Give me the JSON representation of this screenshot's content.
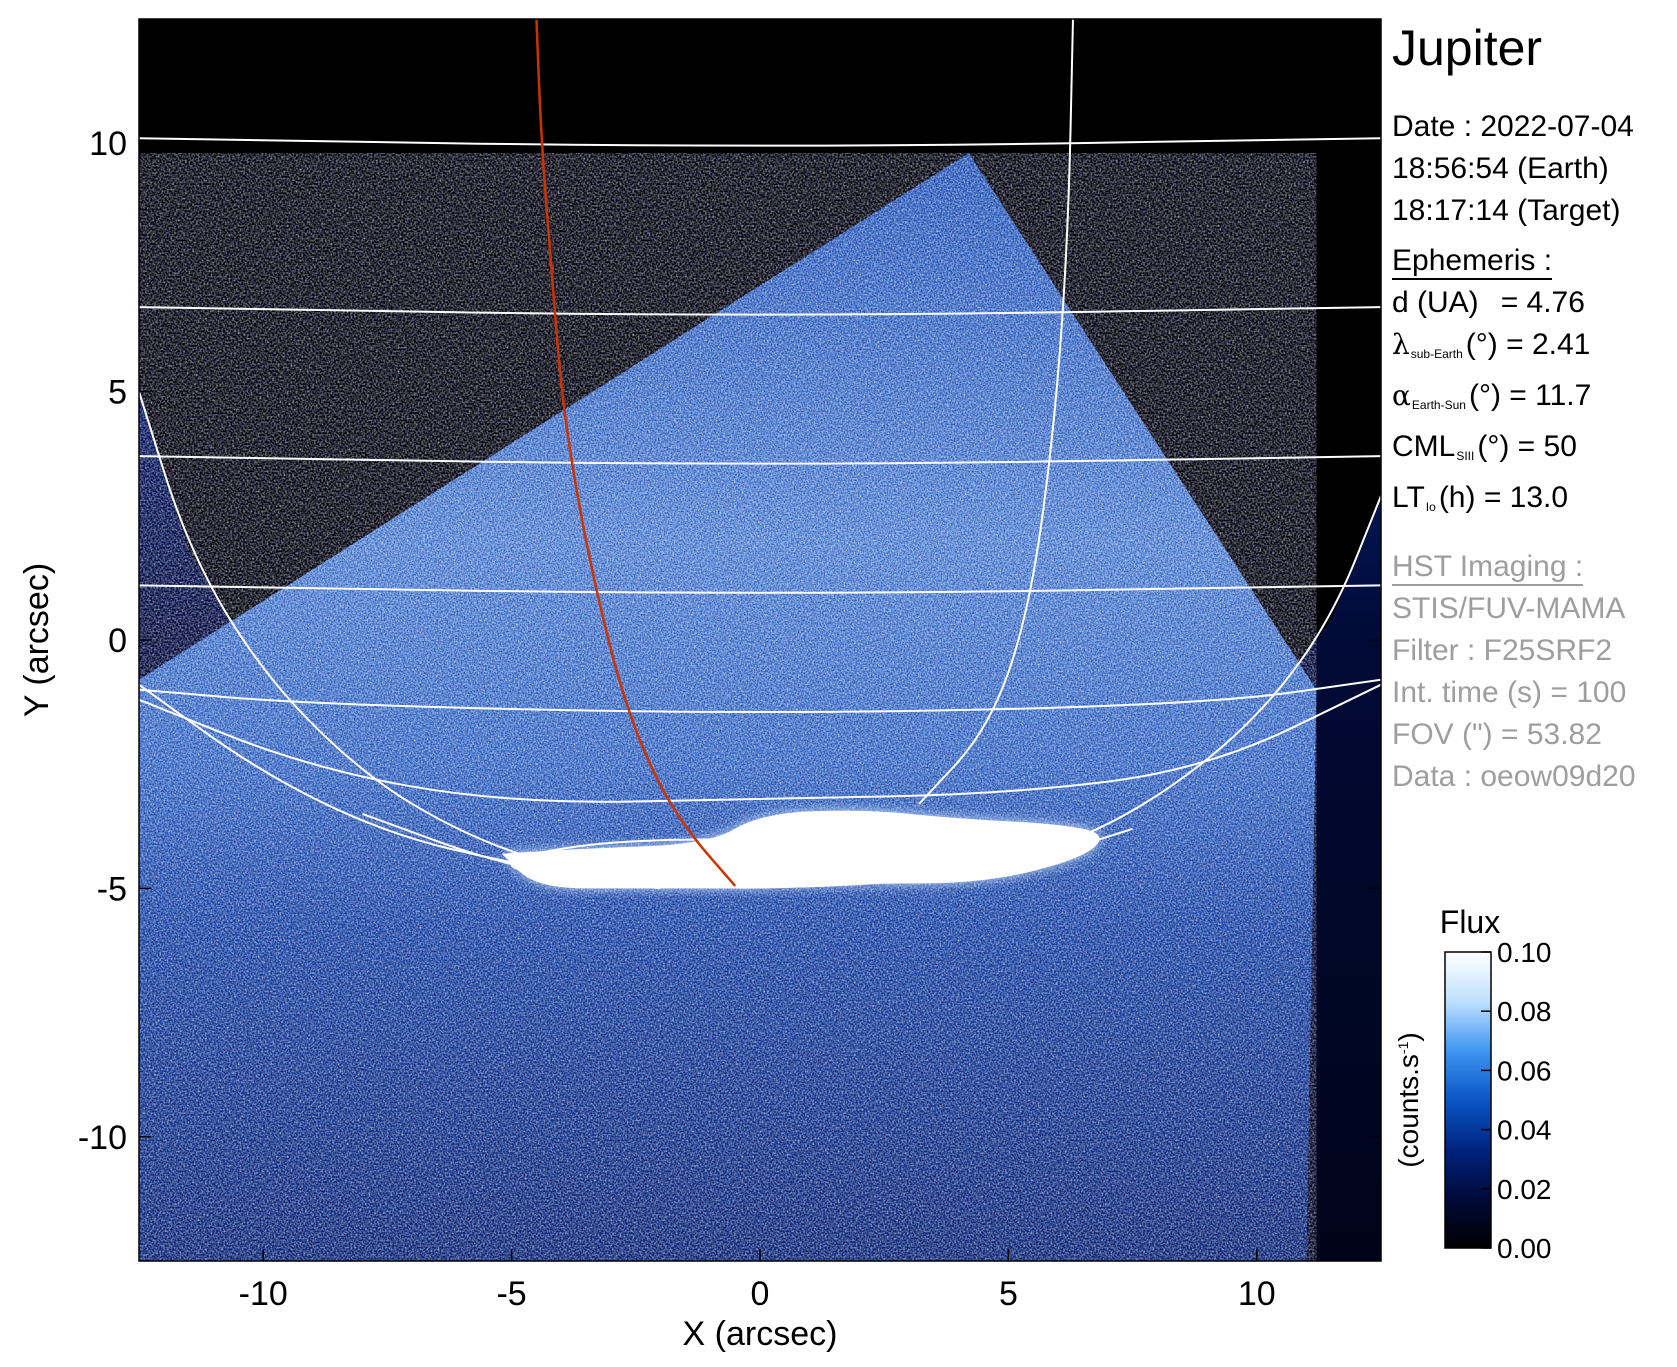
{
  "info": {
    "title": "Jupiter",
    "date_line": "Date : 2022-07-04",
    "time_earth": "18:56:54 (Earth)",
    "time_target": "18:17:14 (Target)",
    "ephemeris_header": "Ephemeris :",
    "d_label": "d (UA)",
    "d_value": "= 4.76",
    "lat_symbol": "λ",
    "lat_sub": "sub-Earth",
    "lat_rest": "(°) = 2.41",
    "phase_symbol": "α",
    "phase_sub": "Earth-Sun",
    "phase_rest": "(°) = 11.7",
    "cml_main": "CML",
    "cml_sub": "SIII",
    "cml_rest": "(°) = 50",
    "lt_main": "LT",
    "lt_sub": "Io",
    "lt_rest": "(h) = 13.0",
    "hst_header": "HST Imaging :",
    "instrument": "STIS/FUV-MAMA",
    "filter": "Filter : F25SRF2",
    "int_time": "Int. time (s) = 100",
    "fov": "FOV (\") = 53.82",
    "data_id": "Data : oeow09d20"
  },
  "colorbar": {
    "title": "Flux",
    "unit_label": "(counts.s",
    "unit_sup": "-1",
    "unit_close": ")",
    "ticks": [
      "0.10",
      "0.08",
      "0.06",
      "0.04",
      "0.02",
      "0.00"
    ],
    "min": 0.0,
    "max": 0.1,
    "colors": [
      "#000000",
      "#000a3a",
      "#00237f",
      "#0a56c6",
      "#3f96f0",
      "#bfe0ff",
      "#ffffff"
    ]
  },
  "chart_data": {
    "type": "heatmap",
    "title": "Jupiter",
    "xlabel": "X (arcsec)",
    "ylabel": "Y (arcsec)",
    "xlim": [
      -12.5,
      12.5
    ],
    "ylim": [
      -12.5,
      12.5
    ],
    "xticks": [
      -10,
      -5,
      0,
      5,
      10
    ],
    "yticks": [
      -10,
      -5,
      0,
      5,
      10
    ],
    "xtick_labels": [
      "-10",
      "-5",
      "0",
      "5",
      "10"
    ],
    "ytick_labels": [
      "-10",
      "-5",
      "0",
      "5",
      "10"
    ],
    "colorbar_label": "Flux (counts.s-1)",
    "value_range": [
      0.0,
      0.1
    ],
    "overlays": {
      "grid_color": "#ffffff",
      "footprint_color": "#cc3300",
      "io_footprint": [
        [
          -4.5,
          12.5
        ],
        [
          -4.4,
          10
        ],
        [
          -4.2,
          7.5
        ],
        [
          -4.0,
          5.0
        ],
        [
          -3.7,
          3.0
        ],
        [
          -3.3,
          1.0
        ],
        [
          -2.8,
          -1.0
        ],
        [
          -2.2,
          -2.6
        ],
        [
          -1.5,
          -3.8
        ],
        [
          -0.5,
          -4.95
        ]
      ],
      "limb": [
        [
          -12.5,
          5.0
        ],
        [
          -11.5,
          1.8
        ],
        [
          -10.0,
          -0.7
        ],
        [
          -8.0,
          -2.7
        ],
        [
          -6.0,
          -3.9
        ],
        [
          -4.0,
          -4.6
        ],
        [
          -2.0,
          -4.95
        ],
        [
          0.0,
          -5.0
        ],
        [
          2.0,
          -4.9
        ],
        [
          4.0,
          -4.7
        ],
        [
          6.0,
          -4.2
        ],
        [
          8.0,
          -3.2
        ],
        [
          10.0,
          -1.6
        ],
        [
          11.5,
          0.4
        ],
        [
          12.5,
          2.9
        ]
      ],
      "parallels": [
        [
          [
            -12.5,
            10.1
          ],
          [
            0,
            9.9
          ],
          [
            12.5,
            10.1
          ]
        ],
        [
          [
            -12.5,
            6.7
          ],
          [
            0,
            6.5
          ],
          [
            12.5,
            6.7
          ]
        ],
        [
          [
            -12.5,
            3.7
          ],
          [
            0,
            3.5
          ],
          [
            12.5,
            3.7
          ]
        ],
        [
          [
            -12.5,
            1.1
          ],
          [
            0,
            0.9
          ],
          [
            12.5,
            1.1
          ]
        ],
        [
          [
            -12.5,
            -1.0
          ],
          [
            -9,
            -1.3
          ],
          [
            0,
            -1.5
          ],
          [
            9,
            -1.3
          ],
          [
            12.5,
            -0.8
          ]
        ],
        [
          [
            -12.5,
            -1.2
          ],
          [
            -9,
            -2.6
          ],
          [
            -5,
            -3.3
          ],
          [
            0,
            -3.2
          ],
          [
            5,
            -3.1
          ],
          [
            9,
            -2.6
          ],
          [
            12.5,
            -0.9
          ]
        ]
      ],
      "meridians": [
        [
          [
            6.3,
            12.5
          ],
          [
            6.2,
            8.0
          ],
          [
            5.9,
            4.0
          ],
          [
            5.4,
            0.5
          ],
          [
            4.6,
            -1.8
          ],
          [
            3.2,
            -3.3
          ]
        ],
        [
          [
            -12.5,
            -0.9
          ],
          [
            -10,
            -2.7
          ],
          [
            -7.5,
            -3.9
          ],
          [
            -5,
            -4.5
          ],
          [
            -2.5,
            -4.9
          ],
          [
            0,
            -5.0
          ],
          [
            2.5,
            -4.9
          ],
          [
            5,
            -4.6
          ],
          [
            7.5,
            -3.8
          ]
        ],
        [
          [
            -8.0,
            -3.5
          ],
          [
            -5.0,
            -4.6
          ],
          [
            -2.0,
            -5.0
          ]
        ]
      ],
      "auroral_oval": [
        [
          -5.0,
          -4.4
        ],
        [
          -3.5,
          -4.1
        ],
        [
          -1.5,
          -4.0
        ],
        [
          0.5,
          -4.05
        ],
        [
          2.0,
          -4.25
        ],
        [
          1.5,
          -4.6
        ],
        [
          -0.5,
          -4.85
        ],
        [
          -3.0,
          -4.85
        ],
        [
          -5.0,
          -4.65
        ],
        [
          -5.0,
          -4.4
        ]
      ]
    },
    "emission_regions": {
      "observed_disk_polygon": [
        [
          -12.5,
          -0.8
        ],
        [
          4.2,
          9.8
        ],
        [
          11.2,
          -1.0
        ],
        [
          11.0,
          -12.5
        ],
        [
          -12.5,
          -12.5
        ]
      ],
      "main_oval_ribbon": [
        [
          -5.2,
          -4.3
        ],
        [
          -3.5,
          -4.2
        ],
        [
          -1.0,
          -4.1
        ],
        [
          0.0,
          -3.5
        ],
        [
          2.0,
          -3.4
        ],
        [
          4.0,
          -3.6
        ],
        [
          6.0,
          -3.7
        ],
        [
          7.0,
          -3.9
        ],
        [
          6.5,
          -4.4
        ],
        [
          4.5,
          -4.9
        ],
        [
          2.0,
          -4.9
        ],
        [
          0.0,
          -5.0
        ],
        [
          -2.5,
          -5.0
        ],
        [
          -4.5,
          -5.0
        ],
        [
          -5.2,
          -4.3
        ]
      ]
    }
  }
}
